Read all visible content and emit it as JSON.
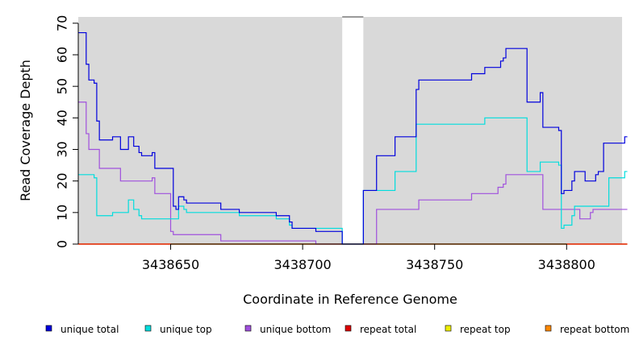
{
  "chart_data": {
    "type": "line",
    "xlabel": "Coordinate in Reference Genome",
    "ylabel": "Read Coverage Depth",
    "xlim": [
      3438615,
      3438821
    ],
    "ylim": [
      0,
      72
    ],
    "x_ticks": [
      3438650,
      3438700,
      3438750,
      3438800
    ],
    "x_tick_labels": [
      "3438650",
      "3438700",
      "3438750",
      "3438800"
    ],
    "y_ticks": [
      0,
      10,
      20,
      30,
      40,
      50,
      60,
      70
    ],
    "y_tick_labels": [
      "0",
      "10",
      "20",
      "30",
      "40",
      "50",
      "60",
      "70"
    ],
    "gap": [
      3438715,
      3438723
    ],
    "plot_background": "#d9d9d9",
    "grid": false,
    "legend_position": "bottom",
    "series": [
      {
        "name": "unique total",
        "color": "#0000dd",
        "points": [
          [
            3438615,
            67
          ],
          [
            3438618,
            67
          ],
          [
            3438618,
            57
          ],
          [
            3438619,
            57
          ],
          [
            3438619,
            52
          ],
          [
            3438621,
            52
          ],
          [
            3438621,
            51
          ],
          [
            3438622,
            51
          ],
          [
            3438622,
            39
          ],
          [
            3438623,
            39
          ],
          [
            3438623,
            33
          ],
          [
            3438628,
            33
          ],
          [
            3438628,
            34
          ],
          [
            3438631,
            34
          ],
          [
            3438631,
            30
          ],
          [
            3438634,
            30
          ],
          [
            3438634,
            34
          ],
          [
            3438636,
            34
          ],
          [
            3438636,
            31
          ],
          [
            3438638,
            31
          ],
          [
            3438638,
            29
          ],
          [
            3438639,
            29
          ],
          [
            3438639,
            28
          ],
          [
            3438643,
            28
          ],
          [
            3438643,
            29
          ],
          [
            3438644,
            29
          ],
          [
            3438644,
            24
          ],
          [
            3438651,
            24
          ],
          [
            3438651,
            12
          ],
          [
            3438652,
            12
          ],
          [
            3438652,
            11
          ],
          [
            3438653,
            11
          ],
          [
            3438653,
            15
          ],
          [
            3438655,
            15
          ],
          [
            3438655,
            14
          ],
          [
            3438656,
            14
          ],
          [
            3438656,
            13
          ],
          [
            3438669,
            13
          ],
          [
            3438669,
            11
          ],
          [
            3438676,
            11
          ],
          [
            3438676,
            10
          ],
          [
            3438690,
            10
          ],
          [
            3438690,
            9
          ],
          [
            3438695,
            9
          ],
          [
            3438695,
            7
          ],
          [
            3438696,
            7
          ],
          [
            3438696,
            5
          ],
          [
            3438705,
            5
          ],
          [
            3438705,
            4
          ],
          [
            3438715,
            4
          ],
          [
            3438715,
            0
          ],
          [
            3438723,
            0
          ],
          [
            3438723,
            17
          ],
          [
            3438728,
            17
          ],
          [
            3438728,
            28
          ],
          [
            3438735,
            28
          ],
          [
            3438735,
            34
          ],
          [
            3438743,
            34
          ],
          [
            3438743,
            49
          ],
          [
            3438744,
            49
          ],
          [
            3438744,
            52
          ],
          [
            3438764,
            52
          ],
          [
            3438764,
            54
          ],
          [
            3438769,
            54
          ],
          [
            3438769,
            56
          ],
          [
            3438775,
            56
          ],
          [
            3438775,
            58
          ],
          [
            3438776,
            58
          ],
          [
            3438776,
            59
          ],
          [
            3438777,
            59
          ],
          [
            3438777,
            62
          ],
          [
            3438785,
            62
          ],
          [
            3438785,
            45
          ],
          [
            3438790,
            45
          ],
          [
            3438790,
            48
          ],
          [
            3438791,
            48
          ],
          [
            3438791,
            37
          ],
          [
            3438797,
            37
          ],
          [
            3438797,
            36
          ],
          [
            3438798,
            36
          ],
          [
            3438798,
            16
          ],
          [
            3438799,
            16
          ],
          [
            3438799,
            17
          ],
          [
            3438802,
            17
          ],
          [
            3438802,
            20
          ],
          [
            3438803,
            20
          ],
          [
            3438803,
            23
          ],
          [
            3438807,
            23
          ],
          [
            3438807,
            20
          ],
          [
            3438811,
            20
          ],
          [
            3438811,
            22
          ],
          [
            3438812,
            22
          ],
          [
            3438812,
            23
          ],
          [
            3438814,
            23
          ],
          [
            3438814,
            32
          ],
          [
            3438822,
            32
          ],
          [
            3438822,
            34
          ],
          [
            3438823,
            34
          ]
        ]
      },
      {
        "name": "unique top",
        "color": "#00dddd",
        "points": [
          [
            3438615,
            22
          ],
          [
            3438621,
            22
          ],
          [
            3438621,
            21
          ],
          [
            3438622,
            21
          ],
          [
            3438622,
            9
          ],
          [
            3438628,
            9
          ],
          [
            3438628,
            10
          ],
          [
            3438634,
            10
          ],
          [
            3438634,
            14
          ],
          [
            3438636,
            14
          ],
          [
            3438636,
            11
          ],
          [
            3438638,
            11
          ],
          [
            3438638,
            9
          ],
          [
            3438639,
            9
          ],
          [
            3438639,
            8
          ],
          [
            3438653,
            8
          ],
          [
            3438653,
            12
          ],
          [
            3438655,
            12
          ],
          [
            3438655,
            11
          ],
          [
            3438656,
            11
          ],
          [
            3438656,
            10
          ],
          [
            3438676,
            10
          ],
          [
            3438676,
            9
          ],
          [
            3438690,
            9
          ],
          [
            3438690,
            8
          ],
          [
            3438695,
            8
          ],
          [
            3438695,
            6
          ],
          [
            3438696,
            6
          ],
          [
            3438696,
            5
          ],
          [
            3438715,
            5
          ],
          [
            3438715,
            0
          ],
          [
            3438723,
            0
          ],
          [
            3438723,
            17
          ],
          [
            3438735,
            17
          ],
          [
            3438735,
            23
          ],
          [
            3438743,
            23
          ],
          [
            3438743,
            38
          ],
          [
            3438769,
            38
          ],
          [
            3438769,
            40
          ],
          [
            3438785,
            40
          ],
          [
            3438785,
            23
          ],
          [
            3438790,
            23
          ],
          [
            3438790,
            26
          ],
          [
            3438797,
            26
          ],
          [
            3438797,
            25
          ],
          [
            3438798,
            25
          ],
          [
            3438798,
            5
          ],
          [
            3438799,
            5
          ],
          [
            3438799,
            6
          ],
          [
            3438802,
            6
          ],
          [
            3438802,
            9
          ],
          [
            3438803,
            9
          ],
          [
            3438803,
            12
          ],
          [
            3438816,
            12
          ],
          [
            3438816,
            21
          ],
          [
            3438822,
            21
          ],
          [
            3438822,
            23
          ],
          [
            3438823,
            23
          ]
        ]
      },
      {
        "name": "unique bottom",
        "color": "#a050dd",
        "points": [
          [
            3438615,
            45
          ],
          [
            3438618,
            45
          ],
          [
            3438618,
            35
          ],
          [
            3438619,
            35
          ],
          [
            3438619,
            30
          ],
          [
            3438623,
            30
          ],
          [
            3438623,
            24
          ],
          [
            3438631,
            24
          ],
          [
            3438631,
            20
          ],
          [
            3438643,
            20
          ],
          [
            3438643,
            21
          ],
          [
            3438644,
            21
          ],
          [
            3438644,
            16
          ],
          [
            3438650,
            16
          ],
          [
            3438650,
            4
          ],
          [
            3438651,
            4
          ],
          [
            3438651,
            3
          ],
          [
            3438669,
            3
          ],
          [
            3438669,
            1
          ],
          [
            3438705,
            1
          ],
          [
            3438705,
            0
          ],
          [
            3438728,
            0
          ],
          [
            3438728,
            11
          ],
          [
            3438744,
            11
          ],
          [
            3438744,
            14
          ],
          [
            3438764,
            14
          ],
          [
            3438764,
            16
          ],
          [
            3438774,
            16
          ],
          [
            3438774,
            18
          ],
          [
            3438776,
            18
          ],
          [
            3438776,
            19
          ],
          [
            3438777,
            19
          ],
          [
            3438777,
            22
          ],
          [
            3438791,
            22
          ],
          [
            3438791,
            11
          ],
          [
            3438805,
            11
          ],
          [
            3438805,
            8
          ],
          [
            3438809,
            8
          ],
          [
            3438809,
            10
          ],
          [
            3438810,
            10
          ],
          [
            3438810,
            11
          ],
          [
            3438823,
            11
          ]
        ]
      },
      {
        "name": "repeat total",
        "color": "#dd0000",
        "points": [
          [
            3438615,
            0
          ],
          [
            3438715,
            0
          ],
          [
            3438723,
            0
          ],
          [
            3438823,
            0
          ]
        ]
      },
      {
        "name": "repeat top",
        "color": "#eeee00",
        "points": [
          [
            3438615,
            0
          ],
          [
            3438715,
            0
          ],
          [
            3438723,
            0
          ],
          [
            3438823,
            0
          ]
        ]
      },
      {
        "name": "repeat bottom",
        "color": "#ff8800",
        "points": [
          [
            3438615,
            0
          ],
          [
            3438715,
            0
          ],
          [
            3438723,
            0
          ],
          [
            3438823,
            0
          ]
        ]
      }
    ]
  }
}
